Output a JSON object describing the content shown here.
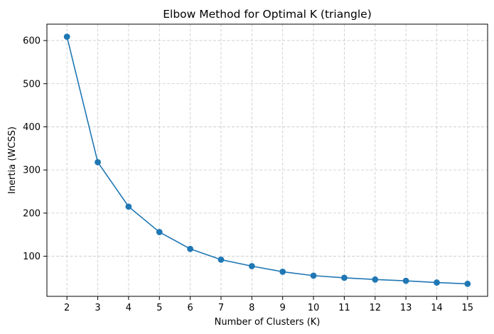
{
  "chart_data": {
    "type": "line",
    "title": "Elbow Method for Optimal K (triangle)",
    "xlabel": "Number of Clusters (K)",
    "ylabel": "Inertia (WCSS)",
    "x": [
      2,
      3,
      4,
      5,
      6,
      7,
      8,
      9,
      10,
      11,
      12,
      13,
      14,
      15
    ],
    "series": [
      {
        "values": [
          609,
          318,
          215,
          156,
          117,
          92,
          77,
          64,
          55,
          50,
          46,
          43,
          39,
          36
        ],
        "color": "#1f77b4",
        "marker": "circle"
      }
    ],
    "xlim": [
      1.35,
      15.65
    ],
    "ylim": [
      7,
      638
    ],
    "xticks": [
      2,
      3,
      4,
      5,
      6,
      7,
      8,
      9,
      10,
      11,
      12,
      13,
      14,
      15
    ],
    "yticks": [
      100,
      200,
      300,
      400,
      500,
      600
    ],
    "grid": true,
    "grid_style": "dashed",
    "grid_color": "#c8c8c8",
    "legend": "none"
  }
}
